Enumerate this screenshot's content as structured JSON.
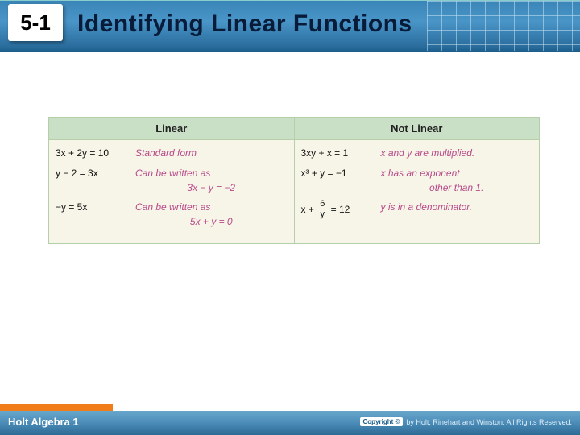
{
  "header": {
    "section_number": "5-1",
    "title": "Identifying Linear Functions",
    "bar_gradient": [
      "#3a85b8",
      "#4a95c8",
      "#2a6d9d",
      "#1b5e8a"
    ],
    "title_color": "#081c3a",
    "title_fontsize": 30,
    "badge_bg": "#ffffff",
    "badge_fontsize": 26
  },
  "table": {
    "border_color": "#b5cfa8",
    "header_bg": "#c9e0c6",
    "body_bg": "#f7f5e8",
    "equation_color": "#111111",
    "desc_color": "#b84a8a",
    "fontsize": 12,
    "columns": [
      {
        "label": "Linear",
        "rows": [
          {
            "equation": "3x + 2y = 10",
            "desc": "Standard form"
          },
          {
            "equation": "y − 2 = 3x",
            "desc": "Can be written as",
            "desc_sub": "3x − y = −2"
          },
          {
            "equation": "−y = 5x",
            "desc": "Can be written as",
            "desc_sub": "5x + y = 0"
          }
        ]
      },
      {
        "label": "Not Linear",
        "rows": [
          {
            "equation": "3xy + x = 1",
            "desc": "x and y are multiplied."
          },
          {
            "equation": "x³ + y = −1",
            "desc": "x has an exponent",
            "desc_sub": "other than 1."
          },
          {
            "equation_frac": {
              "before": "x + ",
              "num": "6",
              "den": "y",
              "after": " = 12"
            },
            "desc": "y is in a denominator."
          }
        ]
      }
    ]
  },
  "footer": {
    "left": "Holt Algebra 1",
    "copyright_label": "Copyright ©",
    "copyright_text": "by Holt, Rinehart and Winston. All Rights Reserved.",
    "bar_gradient": [
      "#6aa7cc",
      "#4a8cb8",
      "#2d6a94"
    ],
    "orange_tab_color": "#f07d1a"
  }
}
